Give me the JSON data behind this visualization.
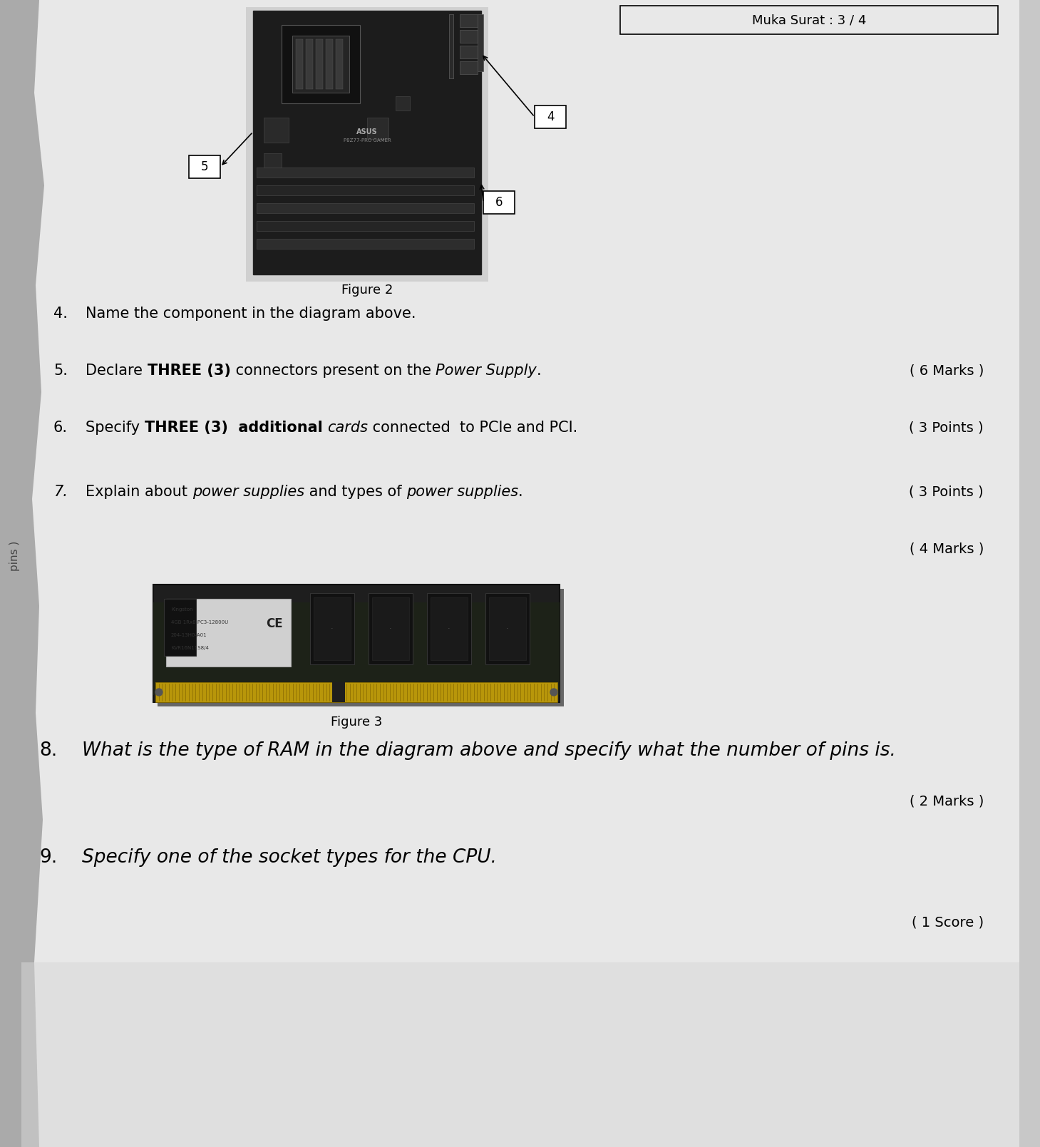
{
  "bg_color": "#c8c8c8",
  "page_color": "#e8e8e8",
  "header_text": "Muka Surat : 3 / 4",
  "figure2_caption": "Figure 2",
  "figure3_caption": "Figure 3",
  "label4": "4",
  "label5": "5",
  "label6": "6",
  "q4_text": "Name the component in the diagram above.",
  "q5_pre": "Declare ",
  "q5_bold": "THREE (3)",
  "q5_mid": " connectors present on the ",
  "q5_italic": "Power Supply",
  "q5_end": ".",
  "q5_marks": "( 6 Marks )",
  "q6_pre": "Specify ",
  "q6_bold": "THREE (3)  additional",
  "q6_space": " ",
  "q6_italic": "cards",
  "q6_end": " connected  to PCle and PCI.",
  "q6_marks": "( 3 Points )",
  "q7_pre": "Explain about ",
  "q7_italic1": "power supplies",
  "q7_mid": " and types of ",
  "q7_italic2": "power supplies",
  "q7_end": ".",
  "q7_marks": "( 3 Points )",
  "q7_extra": "( 4 Marks )",
  "q8_num": "8.",
  "q8_text": "What is the type of RAM in the diagram above and specify what the number of pins is.",
  "q8_marks": "( 2 Marks )",
  "q9_num": "9.",
  "q9_text": "Specify one of the socket types for the CPU.",
  "q9_marks": "( 1 Score )",
  "font_q": 15,
  "font_marks": 14,
  "font_caption": 13,
  "font_hdr": 13,
  "font_q89": 19
}
